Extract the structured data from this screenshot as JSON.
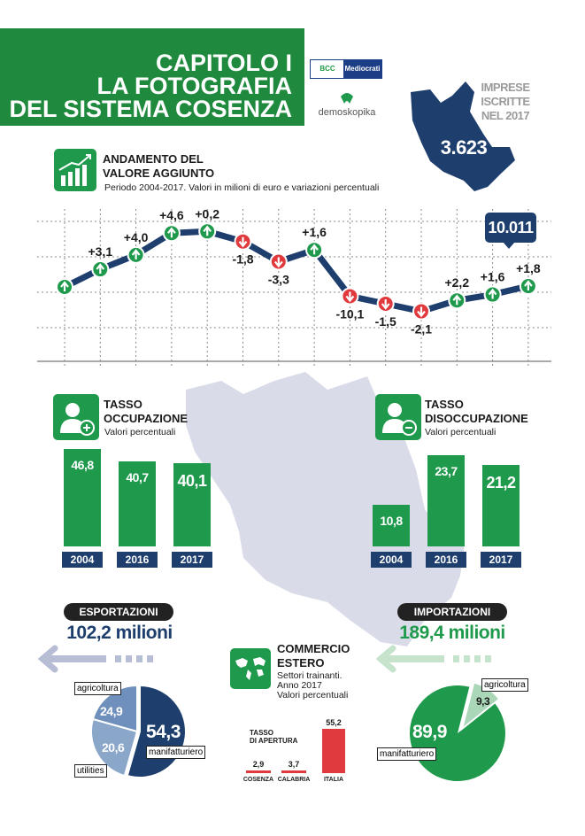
{
  "header": {
    "line1": "CAPITOLO I",
    "line2": "LA FOTOGRAFIA",
    "line3": "DEL SISTEMA COSENZA"
  },
  "logos": {
    "bcc_left": "BCC",
    "bcc_right": "Mediocrati",
    "demo": "demoskopika"
  },
  "imprese": {
    "line1": "IMPRESE",
    "line2": "ISCRITTE",
    "line3": "NEL 2017",
    "value": "3.623"
  },
  "valore_aggiunto": {
    "title1": "ANDAMENTO DEL",
    "title2": "VALORE AGGIUNTO",
    "subtitle": "Periodo 2004-2017. Valori in milioni di euro e variazioni percentuali",
    "callout": "10.011",
    "points": [
      {
        "label": "",
        "dir": "up",
        "level": 0
      },
      {
        "label": "+3,1",
        "dir": "up",
        "level": 1.05
      },
      {
        "label": "+4,0",
        "dir": "up",
        "level": 1.9
      },
      {
        "label": "+4,6",
        "dir": "up",
        "level": 3.2
      },
      {
        "label": "+0,2",
        "dir": "up",
        "level": 3.3
      },
      {
        "label": "-1,8",
        "dir": "down",
        "level": 2.7
      },
      {
        "label": "-3,3",
        "dir": "down",
        "level": 1.5
      },
      {
        "label": "+1,6",
        "dir": "up",
        "level": 2.2
      },
      {
        "label": "-10,1",
        "dir": "down",
        "level": -0.55
      },
      {
        "label": "-1,5",
        "dir": "down",
        "level": -1.0
      },
      {
        "label": "-2,1",
        "dir": "down",
        "level": -1.45
      },
      {
        "label": "+2,2",
        "dir": "up",
        "level": -0.8
      },
      {
        "label": "+1,6",
        "dir": "up",
        "level": -0.45
      },
      {
        "label": "+1,8",
        "dir": "up",
        "level": 0.05
      }
    ]
  },
  "occupazione": {
    "title1": "TASSO",
    "title2": "OCCUPAZIONE",
    "subtitle": "Valori percentuali",
    "bars": [
      {
        "value": "46,8",
        "num": 46.8,
        "year": "2004"
      },
      {
        "value": "40,7",
        "num": 40.7,
        "year": "2016"
      },
      {
        "value": "40,1",
        "num": 40.1,
        "year": "2017"
      }
    ]
  },
  "disoccupazione": {
    "title1": "TASSO",
    "title2": "DISOCCUPAZIONE",
    "subtitle": "Valori percentuali",
    "bars": [
      {
        "value": "10,8",
        "num": 10.8,
        "year": "2004"
      },
      {
        "value": "23,7",
        "num": 23.7,
        "year": "2016"
      },
      {
        "value": "21,2",
        "num": 21.2,
        "year": "2017"
      }
    ]
  },
  "export": {
    "pill": "ESPORTAZIONI",
    "amount": "102,2 milioni",
    "slices": [
      {
        "label": "agricoltura",
        "value": "24,9"
      },
      {
        "label": "utilities",
        "value": "20,6"
      },
      {
        "label": "manifatturiero",
        "value": "54,3"
      }
    ]
  },
  "import": {
    "pill": "IMPORTAZIONI",
    "amount": "189,4 milioni",
    "slices": [
      {
        "label": "agricoltura",
        "value": "9,3"
      },
      {
        "label": "manifatturiero",
        "value": "89,9"
      }
    ]
  },
  "commercio": {
    "title1": "COMMERCIO",
    "title2": "ESTERO",
    "sub1": "Settori trainanti.",
    "sub2": "Anno 2017",
    "sub3": "Valori percentuali"
  },
  "apertura": {
    "title1": "TASSO",
    "title2": "DI APERTURA",
    "bars": [
      {
        "value": "2,9",
        "num": 2.9,
        "label": "COSENZA"
      },
      {
        "value": "3,7",
        "num": 3.7,
        "label": "CALABRIA"
      },
      {
        "value": "55,2",
        "num": 55.2,
        "label": "ITALIA"
      }
    ]
  },
  "colors": {
    "green": "#1f9a4c",
    "navy": "#1e3f6e",
    "red": "#e03a3e",
    "map": "#d9dce8"
  }
}
